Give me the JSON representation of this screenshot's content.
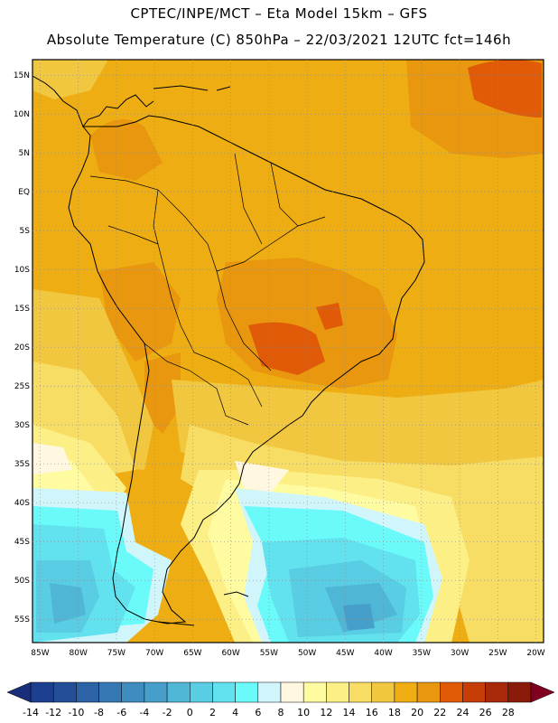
{
  "title_line1": "CPTEC/INPE/MCT –  Eta Model 15km – GFS",
  "title_line2": "Absolute Temperature (C) 850hPa – 22/03/2021 12UTC fct=146h",
  "map": {
    "lat_labels": [
      "15N",
      "10N",
      "5N",
      "EQ",
      "5S",
      "10S",
      "15S",
      "20S",
      "25S",
      "30S",
      "35S",
      "40S",
      "45S",
      "50S",
      "55S"
    ],
    "lon_labels": [
      "85W",
      "80W",
      "75W",
      "70W",
      "65W",
      "60W",
      "55W",
      "50W",
      "45W",
      "40W",
      "35W",
      "30W",
      "25W",
      "20W"
    ],
    "lat_range": [
      17,
      -58
    ],
    "lon_range": [
      -86,
      -19
    ]
  },
  "colorbar": {
    "tick_labels": [
      "-14",
      "-12",
      "-10",
      "-8",
      "-6",
      "-4",
      "-2",
      "0",
      "2",
      "4",
      "6",
      "8",
      "10",
      "12",
      "14",
      "16",
      "18",
      "20",
      "22",
      "24",
      "26",
      "28"
    ],
    "colors": [
      "#1d3f8f",
      "#234f99",
      "#2c63a6",
      "#3678b3",
      "#3f8cbf",
      "#469fca",
      "#4fb6d6",
      "#58cde3",
      "#62e1ee",
      "#6afafa",
      "#d0f6fb",
      "#fff7e0",
      "#fffba0",
      "#fbef86",
      "#f7dd63",
      "#f2c740",
      "#eeae13",
      "#e8970e",
      "#e05a08",
      "#c73d07",
      "#a8290a",
      "#8a1b0b"
    ],
    "low_end_color": "#1a2d7a",
    "high_end_color": "#800020"
  }
}
